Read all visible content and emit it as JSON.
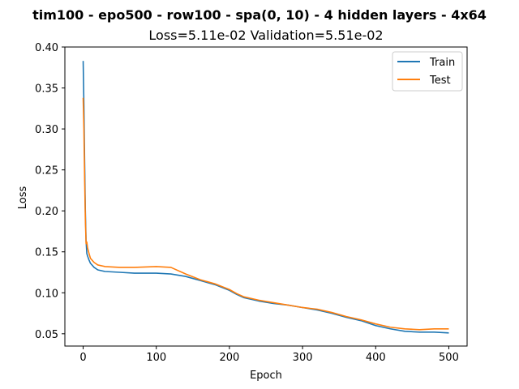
{
  "chart_data": {
    "type": "line",
    "title": "tim100 - epo500 - row100 - spa(0, 10) - 4 hidden layers - 4x64",
    "subtitle": "Loss=5.11e-02 Validation=5.51e-02",
    "xlabel": "Epoch",
    "ylabel": "Loss",
    "xlim": [
      -25,
      525
    ],
    "ylim": [
      0.035,
      0.4
    ],
    "xticks": [
      0,
      100,
      200,
      300,
      400,
      500
    ],
    "xtick_labels": [
      "0",
      "100",
      "200",
      "300",
      "400",
      "500"
    ],
    "yticks": [
      0.05,
      0.1,
      0.15,
      0.2,
      0.25,
      0.3,
      0.35,
      0.4
    ],
    "ytick_labels": [
      "0.05",
      "0.10",
      "0.15",
      "0.20",
      "0.25",
      "0.30",
      "0.35",
      "0.40"
    ],
    "legend_position": "top-right",
    "grid": false,
    "series": [
      {
        "name": "Train",
        "color": "#1f77b4",
        "points": [
          [
            0,
            0.383
          ],
          [
            1,
            0.33
          ],
          [
            2,
            0.26
          ],
          [
            3,
            0.2
          ],
          [
            4,
            0.163
          ],
          [
            5,
            0.148
          ],
          [
            6,
            0.145
          ],
          [
            8,
            0.14
          ],
          [
            10,
            0.136
          ],
          [
            15,
            0.131
          ],
          [
            20,
            0.128
          ],
          [
            30,
            0.126
          ],
          [
            50,
            0.125
          ],
          [
            70,
            0.124
          ],
          [
            100,
            0.124
          ],
          [
            120,
            0.123
          ],
          [
            140,
            0.12
          ],
          [
            160,
            0.115
          ],
          [
            180,
            0.11
          ],
          [
            200,
            0.103
          ],
          [
            210,
            0.098
          ],
          [
            220,
            0.094
          ],
          [
            240,
            0.09
          ],
          [
            260,
            0.087
          ],
          [
            280,
            0.085
          ],
          [
            300,
            0.082
          ],
          [
            320,
            0.079
          ],
          [
            340,
            0.075
          ],
          [
            360,
            0.07
          ],
          [
            380,
            0.066
          ],
          [
            400,
            0.06
          ],
          [
            420,
            0.056
          ],
          [
            440,
            0.053
          ],
          [
            460,
            0.052
          ],
          [
            480,
            0.052
          ],
          [
            500,
            0.051
          ]
        ]
      },
      {
        "name": "Test",
        "color": "#ff7f0e",
        "points": [
          [
            0,
            0.338
          ],
          [
            1,
            0.3
          ],
          [
            2,
            0.24
          ],
          [
            3,
            0.19
          ],
          [
            4,
            0.16
          ],
          [
            5,
            0.162
          ],
          [
            6,
            0.155
          ],
          [
            8,
            0.148
          ],
          [
            10,
            0.142
          ],
          [
            15,
            0.137
          ],
          [
            20,
            0.134
          ],
          [
            30,
            0.132
          ],
          [
            50,
            0.131
          ],
          [
            70,
            0.131
          ],
          [
            100,
            0.132
          ],
          [
            120,
            0.131
          ],
          [
            140,
            0.123
          ],
          [
            160,
            0.116
          ],
          [
            180,
            0.111
          ],
          [
            200,
            0.104
          ],
          [
            210,
            0.099
          ],
          [
            220,
            0.095
          ],
          [
            240,
            0.091
          ],
          [
            260,
            0.088
          ],
          [
            280,
            0.085
          ],
          [
            300,
            0.082
          ],
          [
            320,
            0.08
          ],
          [
            340,
            0.076
          ],
          [
            360,
            0.071
          ],
          [
            380,
            0.067
          ],
          [
            400,
            0.062
          ],
          [
            420,
            0.058
          ],
          [
            440,
            0.056
          ],
          [
            460,
            0.055
          ],
          [
            480,
            0.056
          ],
          [
            500,
            0.056
          ]
        ]
      }
    ]
  }
}
